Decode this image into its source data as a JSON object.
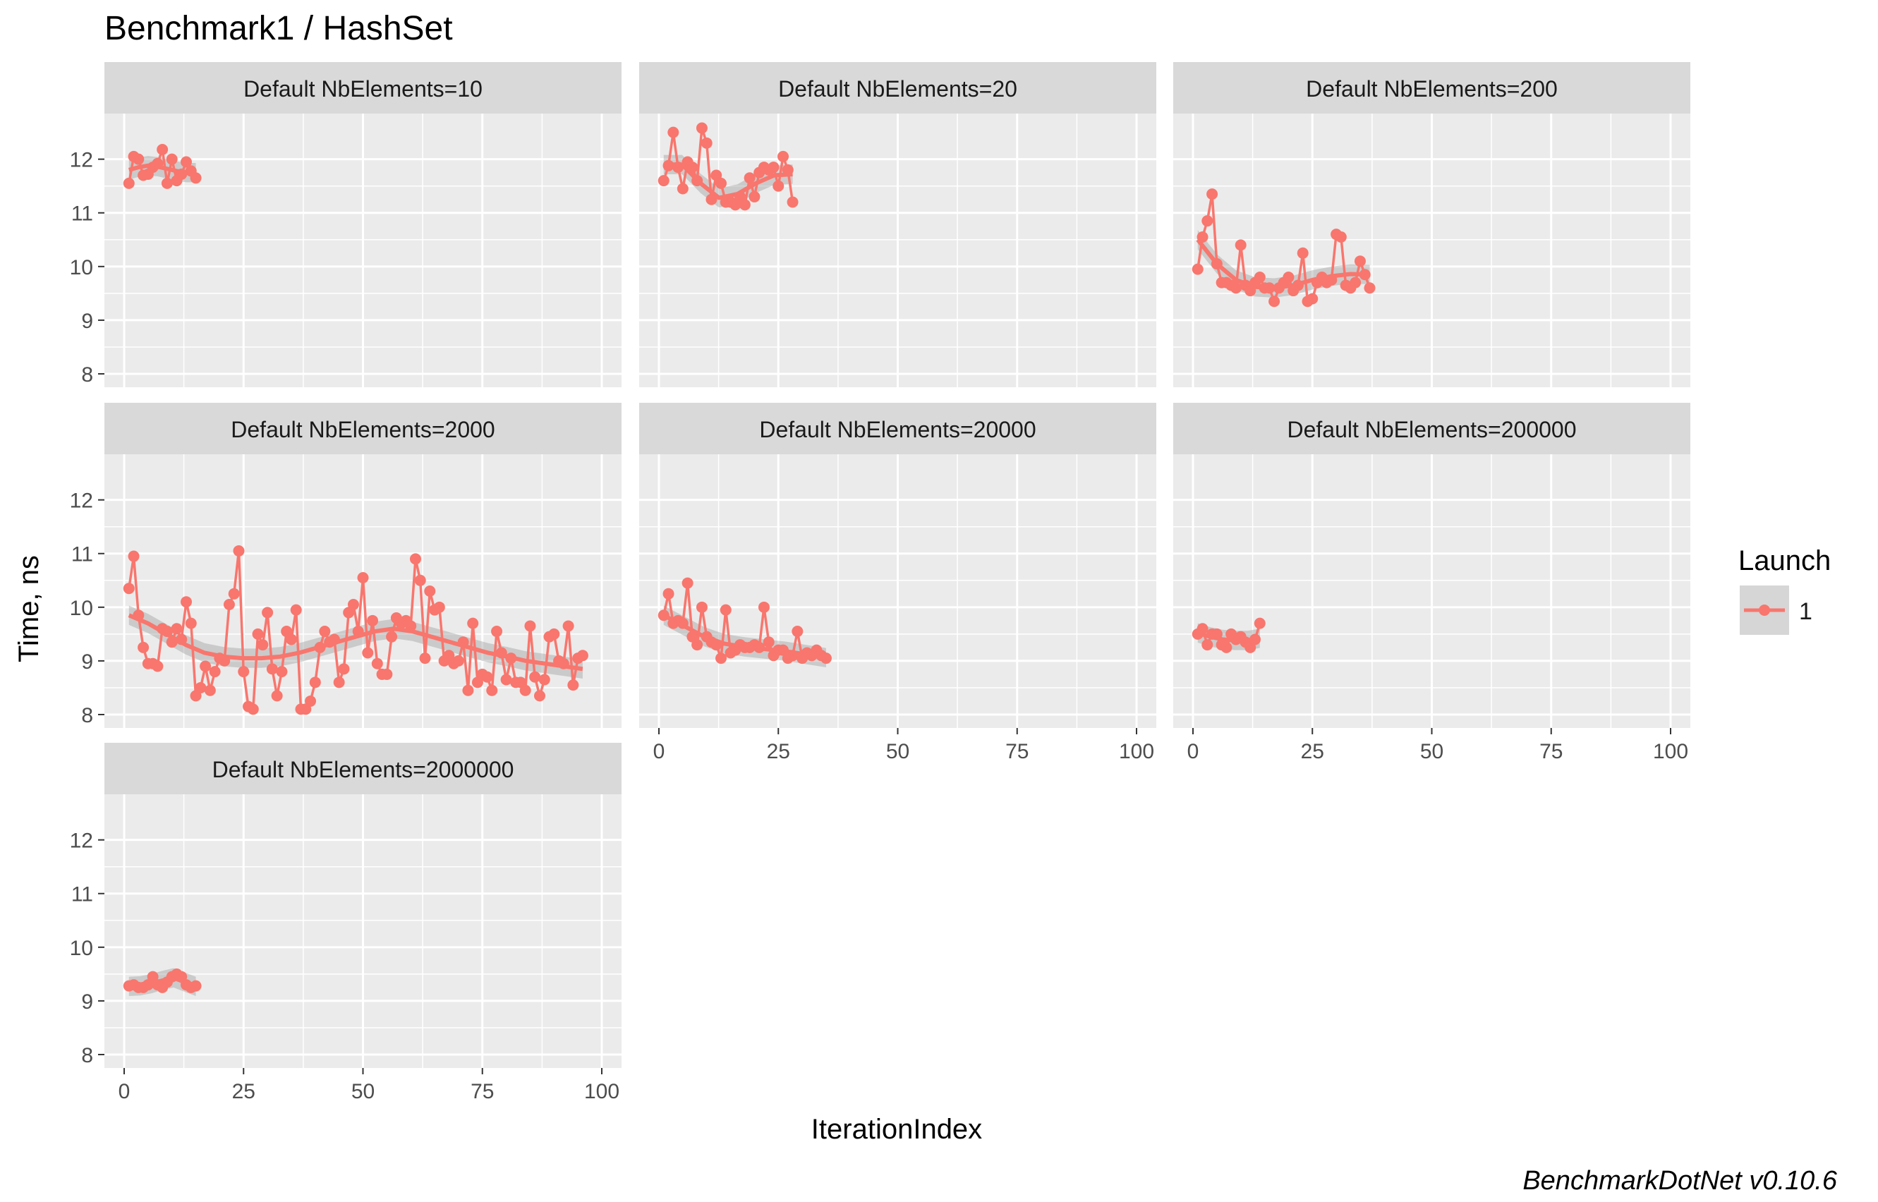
{
  "title": "Benchmark1 / HashSet",
  "footer": "BenchmarkDotNet v0.10.6",
  "colors": {
    "panel_bg": "#EBEBEB",
    "strip_bg": "#D9D9D9",
    "grid": "#FFFFFF",
    "series": "#F8766D",
    "ribbon": "#999999",
    "text": "#1A1A1A",
    "tick_text": "#4D4D4D"
  },
  "chart_data": {
    "type": "line",
    "xlabel": "IterationIndex",
    "ylabel": "Time, ns",
    "xlim": [
      0,
      100
    ],
    "ylim": [
      8,
      12
    ],
    "x_ticks": [
      0,
      25,
      50,
      75,
      100
    ],
    "y_ticks": [
      8,
      9,
      10,
      11,
      12
    ],
    "legend": {
      "title": "Launch",
      "placement": "right",
      "entries": [
        "1"
      ]
    },
    "smooth": true,
    "panels": [
      {
        "label": "Default NbElements=10",
        "series": [
          {
            "name": "1",
            "x": [
              1,
              2,
              3,
              4,
              5,
              6,
              7,
              8,
              9,
              10,
              11,
              12,
              13,
              14,
              15
            ],
            "y": [
              11.55,
              12.05,
              12.0,
              11.7,
              11.72,
              11.85,
              11.92,
              12.18,
              11.55,
              12.0,
              11.6,
              11.72,
              11.95,
              11.78,
              11.65
            ]
          }
        ],
        "smooth": [
          11.8,
          11.85,
          11.88,
          11.86,
          11.82,
          11.78,
          11.75,
          11.75
        ]
      },
      {
        "label": "Default NbElements=20",
        "series": [
          {
            "name": "1",
            "x": [
              1,
              2,
              3,
              4,
              5,
              6,
              7,
              8,
              9,
              10,
              11,
              12,
              13,
              14,
              15,
              16,
              17,
              18,
              19,
              20,
              21,
              22,
              23,
              24,
              25,
              26,
              27,
              28
            ],
            "y": [
              11.6,
              11.88,
              12.5,
              11.85,
              11.45,
              11.95,
              11.85,
              11.6,
              12.58,
              12.3,
              11.25,
              11.7,
              11.55,
              11.2,
              11.2,
              11.15,
              11.3,
              11.15,
              11.65,
              11.3,
              11.75,
              11.85,
              11.8,
              11.85,
              11.5,
              12.05,
              11.8,
              11.2
            ]
          }
        ],
        "smooth": [
          11.9,
          11.9,
          11.55,
          11.28,
          11.35,
          11.55,
          11.7,
          11.72
        ]
      },
      {
        "label": "Default NbElements=200",
        "series": [
          {
            "name": "1",
            "x": [
              1,
              2,
              3,
              4,
              5,
              6,
              7,
              8,
              9,
              10,
              11,
              12,
              13,
              14,
              15,
              16,
              17,
              18,
              19,
              20,
              21,
              22,
              23,
              24,
              25,
              26,
              27,
              28,
              29,
              30,
              31,
              32,
              33,
              34,
              35,
              36,
              37
            ],
            "y": [
              9.95,
              10.55,
              10.85,
              11.35,
              10.05,
              9.7,
              9.7,
              9.65,
              9.6,
              10.4,
              9.65,
              9.55,
              9.7,
              9.8,
              9.6,
              9.6,
              9.35,
              9.6,
              9.7,
              9.8,
              9.55,
              9.65,
              10.25,
              9.35,
              9.4,
              9.7,
              9.8,
              9.7,
              9.75,
              10.6,
              10.55,
              9.65,
              9.6,
              9.7,
              10.1,
              9.85,
              9.6
            ]
          }
        ],
        "smooth": [
          10.5,
          10.05,
          9.75,
          9.62,
          9.6,
          9.65,
          9.75,
          9.82,
          9.86,
          9.85
        ]
      },
      {
        "label": "Default NbElements=2000",
        "series": [
          {
            "name": "1",
            "x": [
              1,
              2,
              3,
              4,
              5,
              6,
              7,
              8,
              9,
              10,
              11,
              12,
              13,
              14,
              15,
              16,
              17,
              18,
              19,
              20,
              21,
              22,
              23,
              24,
              25,
              26,
              27,
              28,
              29,
              30,
              31,
              32,
              33,
              34,
              35,
              36,
              37,
              38,
              39,
              40,
              41,
              42,
              43,
              44,
              45,
              46,
              47,
              48,
              49,
              50,
              51,
              52,
              53,
              54,
              55,
              56,
              57,
              58,
              59,
              60,
              61,
              62,
              63,
              64,
              65,
              66,
              67,
              68,
              69,
              70,
              71,
              72,
              73,
              74,
              75,
              76,
              77,
              78,
              79,
              80,
              81,
              82,
              83,
              84,
              85,
              86,
              87,
              88,
              89,
              90,
              91,
              92,
              93,
              94,
              95,
              96
            ],
            "y": [
              10.35,
              10.95,
              9.85,
              9.25,
              8.95,
              8.95,
              8.9,
              9.6,
              9.55,
              9.35,
              9.6,
              9.4,
              10.1,
              9.7,
              8.35,
              8.5,
              8.9,
              8.45,
              8.8,
              9.05,
              9.0,
              10.05,
              10.25,
              11.05,
              8.8,
              8.15,
              8.1,
              9.5,
              9.3,
              9.9,
              8.85,
              8.35,
              8.8,
              9.55,
              9.4,
              9.95,
              8.1,
              8.1,
              8.25,
              8.6,
              9.25,
              9.55,
              9.35,
              9.4,
              8.6,
              8.85,
              9.9,
              10.05,
              9.55,
              10.55,
              9.15,
              9.75,
              8.95,
              8.75,
              8.75,
              9.45,
              9.8,
              9.7,
              9.75,
              9.65,
              10.9,
              10.5,
              9.05,
              10.3,
              9.95,
              10.0,
              9.0,
              9.1,
              8.95,
              9.0,
              9.35,
              8.45,
              9.7,
              8.6,
              8.75,
              8.7,
              8.45,
              9.55,
              9.15,
              8.65,
              9.05,
              8.6,
              8.6,
              8.45,
              9.65,
              8.7,
              8.35,
              8.65,
              9.45,
              9.5,
              9.0,
              8.95,
              9.65,
              8.55,
              9.05,
              9.1
            ]
          }
        ],
        "smooth": [
          9.85,
          9.7,
          9.5,
          9.3,
          9.15,
          9.08,
          9.05,
          9.05,
          9.08,
          9.15,
          9.25,
          9.35,
          9.45,
          9.55,
          9.6,
          9.55,
          9.45,
          9.35,
          9.25,
          9.15,
          9.08,
          9.0,
          8.95,
          8.9,
          8.85
        ]
      },
      {
        "label": "Default NbElements=20000",
        "series": [
          {
            "name": "1",
            "x": [
              1,
              2,
              3,
              4,
              5,
              6,
              7,
              8,
              9,
              10,
              11,
              12,
              13,
              14,
              15,
              16,
              17,
              18,
              19,
              20,
              21,
              22,
              23,
              24,
              25,
              26,
              27,
              28,
              29,
              30,
              31,
              32,
              33,
              34,
              35
            ],
            "y": [
              9.85,
              10.25,
              9.7,
              9.75,
              9.7,
              10.45,
              9.45,
              9.3,
              10.0,
              9.45,
              9.35,
              9.3,
              9.05,
              9.95,
              9.15,
              9.2,
              9.3,
              9.25,
              9.25,
              9.3,
              9.25,
              10.0,
              9.35,
              9.1,
              9.2,
              9.2,
              9.05,
              9.1,
              9.55,
              9.05,
              9.15,
              9.1,
              9.2,
              9.1,
              9.05
            ]
          }
        ],
        "smooth": [
          9.85,
          9.65,
          9.45,
          9.32,
          9.26,
          9.22,
          9.18,
          9.12,
          9.06
        ]
      },
      {
        "label": "Default NbElements=200000",
        "series": [
          {
            "name": "1",
            "x": [
              1,
              2,
              3,
              4,
              5,
              6,
              7,
              8,
              9,
              10,
              11,
              12,
              13,
              14
            ],
            "y": [
              9.5,
              9.6,
              9.3,
              9.5,
              9.5,
              9.3,
              9.25,
              9.5,
              9.4,
              9.45,
              9.35,
              9.25,
              9.4,
              9.7
            ]
          }
        ],
        "smooth": [
          9.52,
          9.45,
          9.4,
          9.38,
          9.38,
          9.42
        ]
      },
      {
        "label": "Default NbElements=2000000",
        "series": [
          {
            "name": "1",
            "x": [
              1,
              2,
              3,
              4,
              5,
              6,
              7,
              8,
              9,
              10,
              11,
              12,
              13,
              14,
              15
            ],
            "y": [
              9.28,
              9.3,
              9.25,
              9.25,
              9.3,
              9.45,
              9.3,
              9.25,
              9.35,
              9.45,
              9.5,
              9.45,
              9.3,
              9.25,
              9.28
            ]
          }
        ],
        "smooth": [
          9.27,
          9.28,
          9.32,
          9.38,
          9.43,
          9.35,
          9.27
        ]
      }
    ]
  }
}
